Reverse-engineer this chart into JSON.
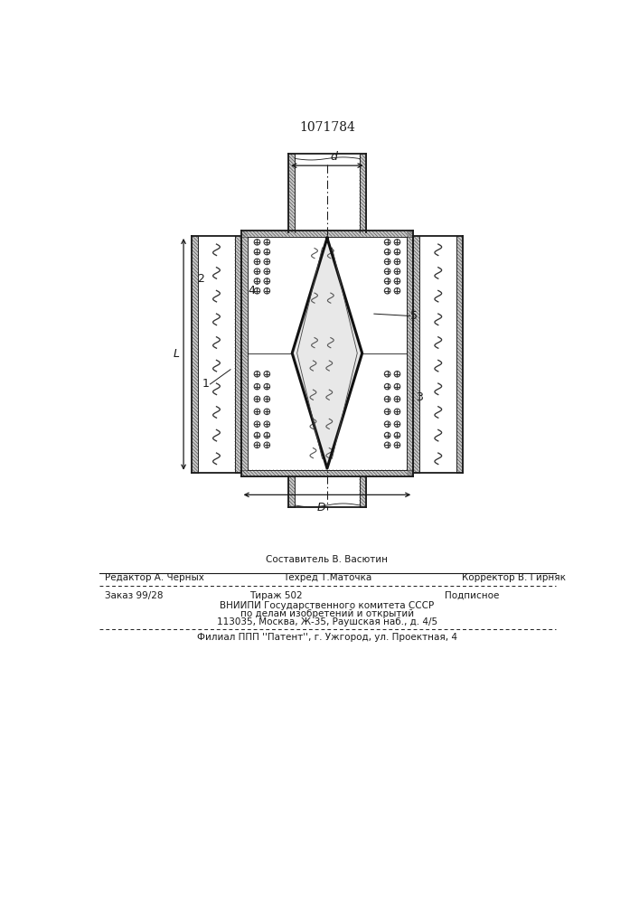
{
  "title": "1071784",
  "title_fontsize": 10,
  "line_color": "#1a1a1a",
  "hatch_color": "#555555",
  "text_color": "#1a1a1a",
  "bg_color": "#ffffff",
  "footer_line1_left": "Редактор А. Черных",
  "footer_line1_center_top": "Составитель В. Васютин",
  "footer_line1_center_bot": "Техред Т.Маточка",
  "footer_line1_right": "Корректор В. Гирняк",
  "footer_order": "Заказ 99/28",
  "footer_tirazh": "Тираж 502",
  "footer_podp": "Подписное",
  "footer_org1": "ВНИИПИ Государственного комитета СССР",
  "footer_org2": "по делам изобретений и открытий",
  "footer_org3": "113035, Москва, Ж-35, Раушская наб., д. 4/5",
  "footer_branch": "Филиал ППП ''Патент'', г. Ужгород, ул. Проектная, 4"
}
